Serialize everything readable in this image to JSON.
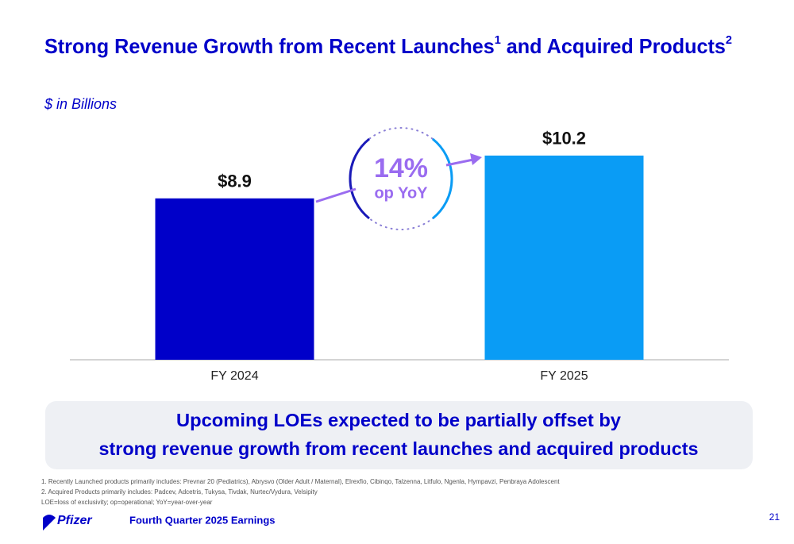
{
  "title": [
    "Strong Revenue Growth from Recent Launches",
    "1",
    " and Acquired Products",
    "2"
  ],
  "chart_data": {
    "type": "bar",
    "subtitle": "$ in Billions",
    "categories": [
      "FY 2024",
      "FY 2025"
    ],
    "values": [
      8.9,
      10.2
    ],
    "value_labels": [
      "$8.9",
      "$10.2"
    ],
    "colors": [
      "#0000c9",
      "#0a9cf5"
    ],
    "ylim": [
      4,
      10.8
    ],
    "annotation": [
      "14%",
      "op YoY"
    ]
  },
  "callout": [
    "Upcoming LOEs expected to be partially offset by",
    "strong revenue growth from recent launches and acquired products"
  ],
  "footnotes": [
    "1. Recently Launched products primarily includes: Prevnar 20 (Pediatrics), Abrysvo (Older Adult / Maternal), Elrexfio, Cibinqo, Talzenna, Litfulo, Ngenla, Hympavzi, Penbraya Adolescent",
    "2. Acquired Products primarily includes: Padcev, Adcetris, Tukysa, Tivdak, Nurtec/Vydura, Velsipity",
    "LOE=loss of exclusivity; op=operational; YoY=year-over-year"
  ],
  "footer": {
    "logo": "Pfizer",
    "text": "Fourth Quarter 2025 Earnings",
    "page": "21"
  }
}
